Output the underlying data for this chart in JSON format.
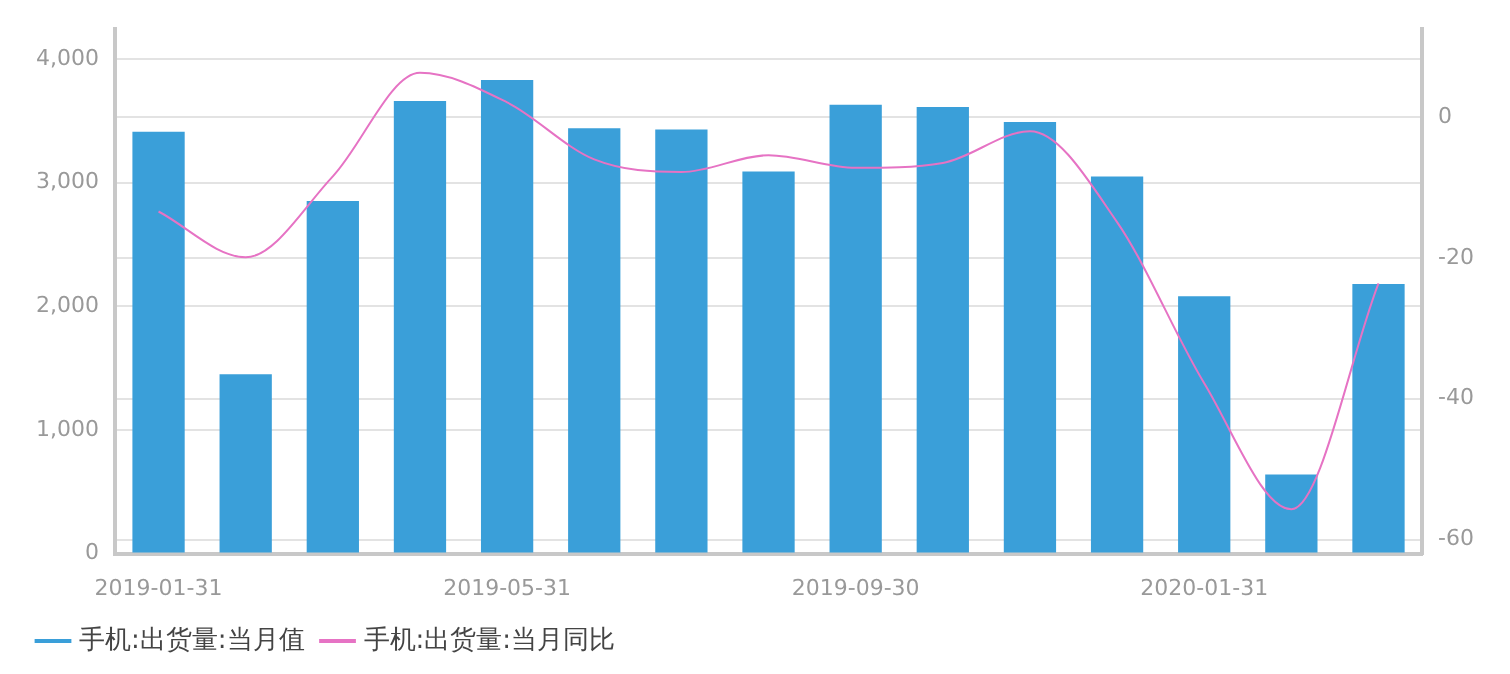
{
  "chart_data": {
    "type": "bar",
    "categories": [
      "2019-01-31",
      null,
      null,
      null,
      "2019-05-31",
      null,
      null,
      null,
      "2019-09-30",
      null,
      null,
      null,
      "2020-01-31",
      null,
      null
    ],
    "series": [
      {
        "name": "手机:出货量:当月值",
        "color": "#3a9fd9",
        "values": [
          3410,
          1450,
          2850,
          3660,
          3830,
          3440,
          3430,
          3090,
          3630,
          3610,
          3490,
          3050,
          2080,
          640,
          2180
        ]
      },
      {
        "name": "手机:出货量:当月同比",
        "type": "line",
        "axis": "y2",
        "color": "#e673c4",
        "values": [
          -13.4,
          -19.9,
          -8.4,
          6.3,
          2.1,
          -6.0,
          -7.8,
          -5.4,
          -7.2,
          -6.5,
          -2.0,
          -14.9,
          -37.8,
          -55.7,
          -23.6
        ]
      }
    ],
    "ylim": [
      0,
      4240
    ],
    "yticks": [
      0,
      {
        "value": 1000,
        "label": "1,000"
      },
      {
        "value": 2000,
        "label": "2,000"
      },
      {
        "value": 3000,
        "label": "3,000"
      },
      {
        "value": 4000,
        "label": "4,000"
      }
    ],
    "y2lim": [
      -62,
      12.5
    ],
    "y2ticks": [
      -60,
      -40,
      -20,
      0
    ],
    "grid": "y",
    "legend": "bottom left",
    "marker": "none",
    "line_style": "solid"
  }
}
